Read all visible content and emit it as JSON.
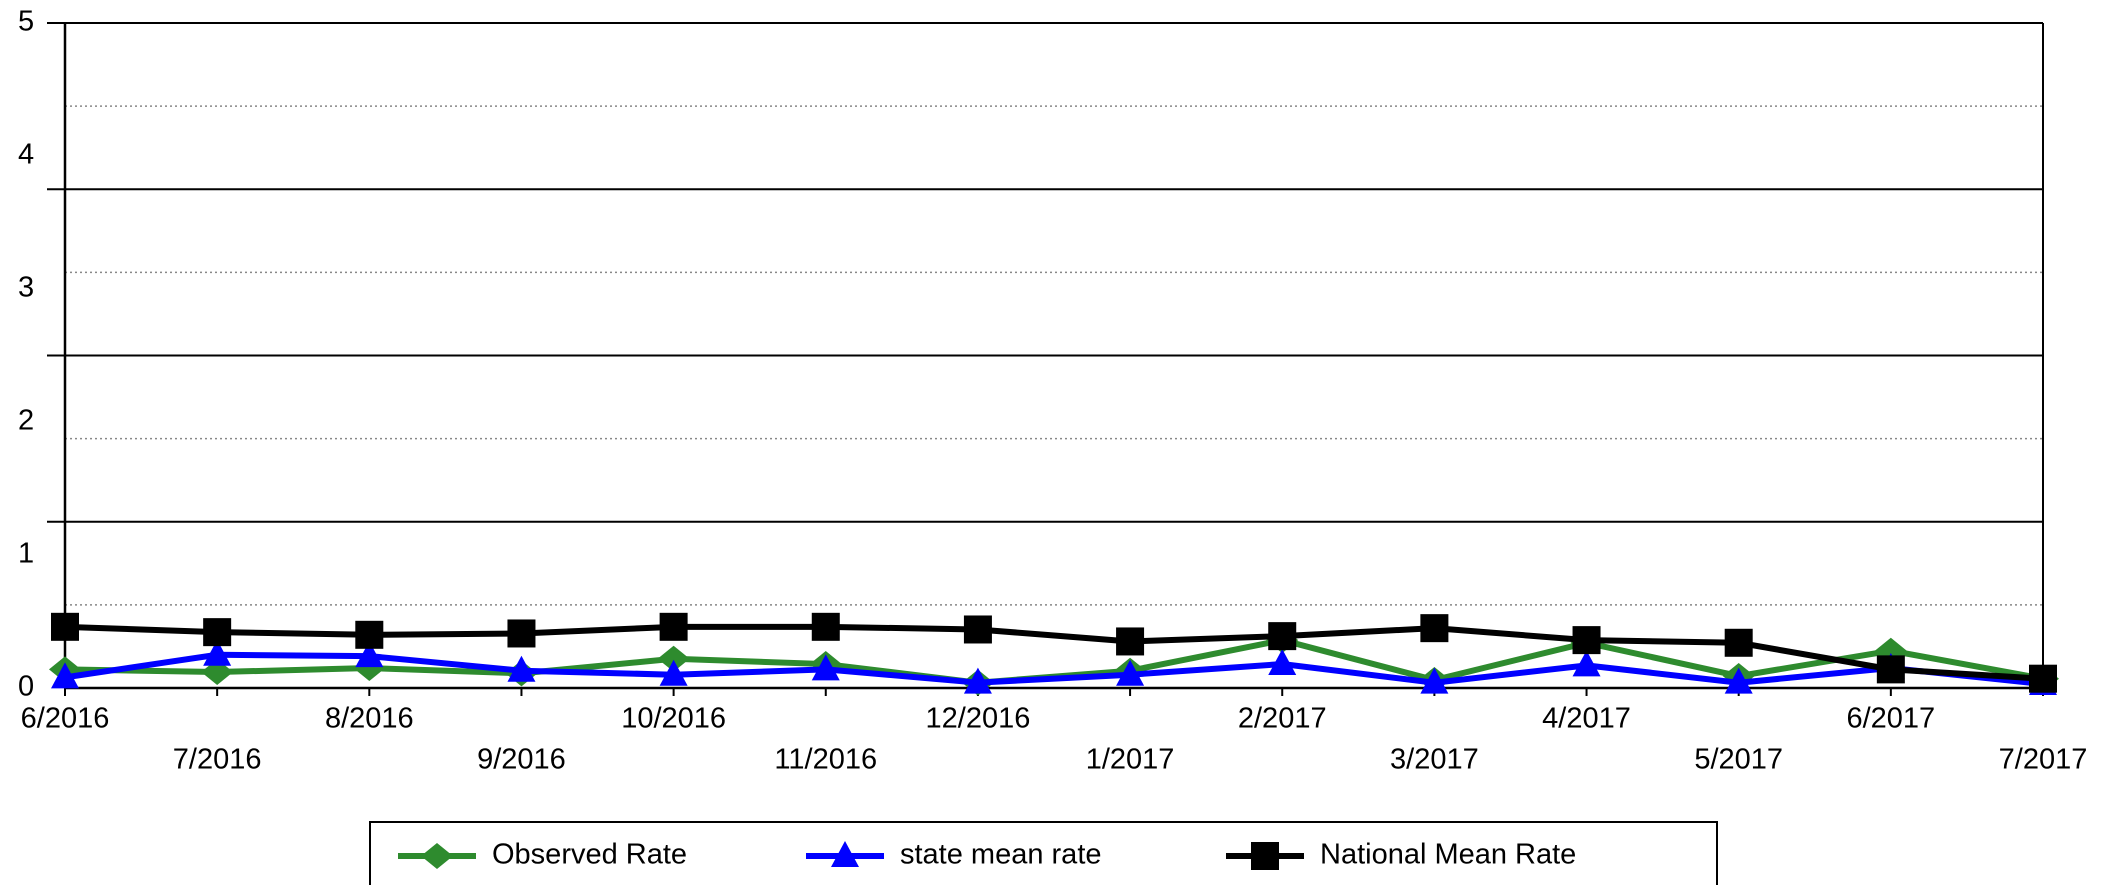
{
  "chart_data": {
    "type": "line",
    "categories": [
      "6/2016",
      "7/2016",
      "8/2016",
      "9/2016",
      "10/2016",
      "11/2016",
      "12/2016",
      "1/2017",
      "2/2017",
      "3/2017",
      "4/2017",
      "5/2017",
      "6/2017",
      "7/2017"
    ],
    "series": [
      {
        "name": "Observed Rate",
        "color": "#2e8b2e",
        "marker": "diamond",
        "values": [
          0.14,
          0.12,
          0.15,
          0.11,
          0.22,
          0.18,
          0.04,
          0.13,
          0.36,
          0.06,
          0.34,
          0.09,
          0.28,
          0.07
        ]
      },
      {
        "name": "state mean rate",
        "color": "#0000ff",
        "marker": "triangle",
        "values": [
          0.08,
          0.25,
          0.24,
          0.13,
          0.1,
          0.14,
          0.04,
          0.1,
          0.18,
          0.04,
          0.17,
          0.04,
          0.15,
          0.03
        ]
      },
      {
        "name": "National Mean Rate",
        "color": "#000000",
        "marker": "square",
        "values": [
          0.46,
          0.42,
          0.4,
          0.41,
          0.46,
          0.46,
          0.44,
          0.35,
          0.39,
          0.45,
          0.36,
          0.34,
          0.14,
          0.07
        ]
      }
    ],
    "ylim": [
      0,
      5
    ],
    "yticks": [
      0,
      1,
      2,
      3,
      4,
      5
    ],
    "major_grid": [
      1.25,
      2.5,
      3.75,
      5
    ],
    "minor_grid": [
      0.625,
      1.875,
      3.125,
      4.375
    ],
    "legend": "bottom"
  }
}
